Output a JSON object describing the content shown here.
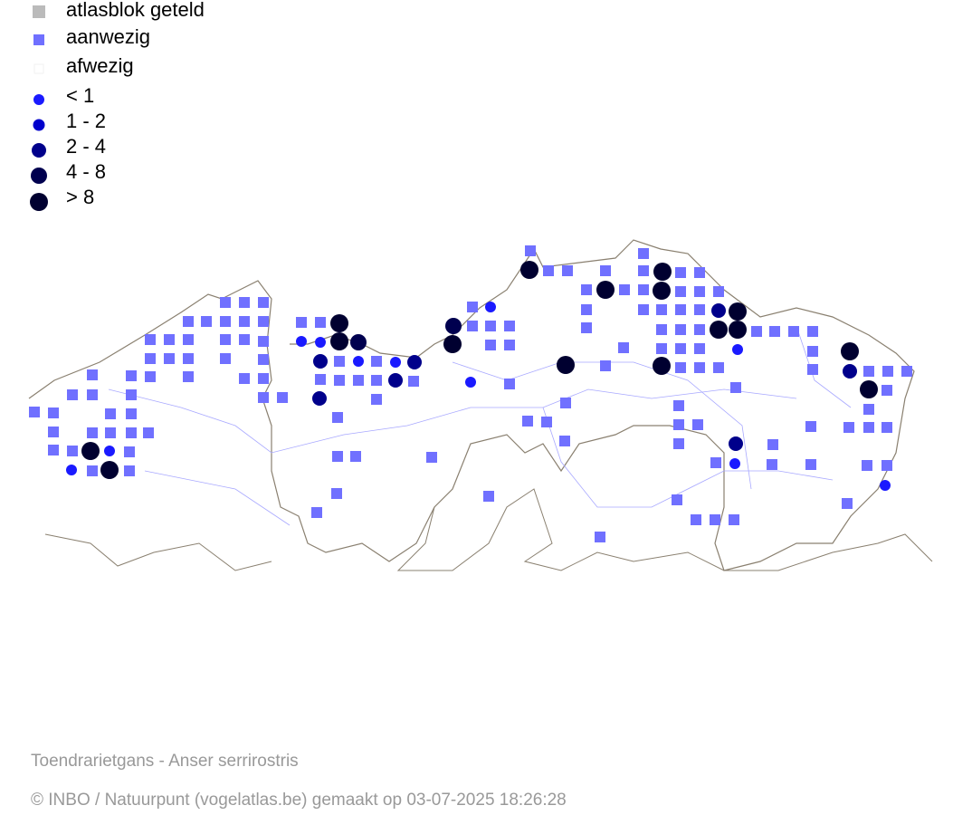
{
  "legend": {
    "items": [
      "atlasblok geteld",
      "aanwezig",
      "afwezig",
      "< 1",
      "1 - 2",
      "2 - 4",
      "4 - 8",
      "> 8"
    ]
  },
  "caption": {
    "species": "Toendrarietgans - Anser serrirostris",
    "credit": "© INBO / Natuurpunt (vogelatlas.be) gemaakt op 03-07-2025 18:26:28"
  }
}
